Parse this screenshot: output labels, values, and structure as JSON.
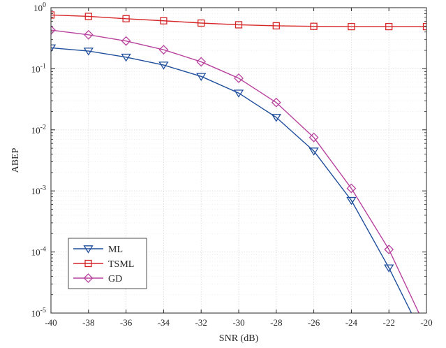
{
  "chart_data": {
    "type": "line",
    "title": "",
    "xlabel": "SNR (dB)",
    "ylabel": "ABEP",
    "xlim": [
      -40,
      -20
    ],
    "ylim": [
      1e-05,
      1
    ],
    "yscale": "log",
    "grid": true,
    "legend_position": "bottom-left",
    "x_ticks": [
      "-40",
      "-38",
      "-36",
      "-34",
      "-32",
      "-30",
      "-28",
      "-26",
      "-24",
      "-22",
      "-20"
    ],
    "y_ticks": [
      {
        "base": "10",
        "exp": "-5"
      },
      {
        "base": "10",
        "exp": "-4"
      },
      {
        "base": "10",
        "exp": "-3"
      },
      {
        "base": "10",
        "exp": "-2"
      },
      {
        "base": "10",
        "exp": "-1"
      },
      {
        "base": "10",
        "exp": "0"
      }
    ],
    "series": [
      {
        "name": "ML",
        "color": "#1f4e9c",
        "marker": "triangle-down",
        "x": [
          -40,
          -38,
          -36,
          -34,
          -32,
          -30,
          -28,
          -26,
          -24,
          -22,
          -20.8
        ],
        "y": [
          0.22,
          0.195,
          0.155,
          0.115,
          0.075,
          0.04,
          0.016,
          0.0045,
          0.0007,
          5.5e-05,
          1e-05
        ],
        "marker_x": [
          -40,
          -38,
          -36,
          -34,
          -32,
          -30,
          -28,
          -26,
          -24,
          -22
        ]
      },
      {
        "name": "TSML",
        "color": "#d62728",
        "marker": "square",
        "x": [
          -40,
          -38,
          -36,
          -34,
          -32,
          -30,
          -28,
          -26,
          -24,
          -22,
          -20
        ],
        "y": [
          0.76,
          0.72,
          0.66,
          0.61,
          0.56,
          0.525,
          0.505,
          0.495,
          0.49,
          0.49,
          0.49
        ],
        "marker_x": [
          -40,
          -38,
          -36,
          -34,
          -32,
          -30,
          -28,
          -26,
          -24,
          -22,
          -20
        ]
      },
      {
        "name": "GD",
        "color": "#b8429e",
        "marker": "diamond",
        "x": [
          -40,
          -38,
          -36,
          -34,
          -32,
          -30,
          -28,
          -26,
          -24,
          -22,
          -20.4
        ],
        "y": [
          0.43,
          0.36,
          0.285,
          0.205,
          0.13,
          0.07,
          0.028,
          0.0075,
          0.0011,
          0.00011,
          1e-05
        ],
        "marker_x": [
          -40,
          -38,
          -36,
          -34,
          -32,
          -30,
          -28,
          -26,
          -24,
          -22
        ]
      }
    ]
  }
}
